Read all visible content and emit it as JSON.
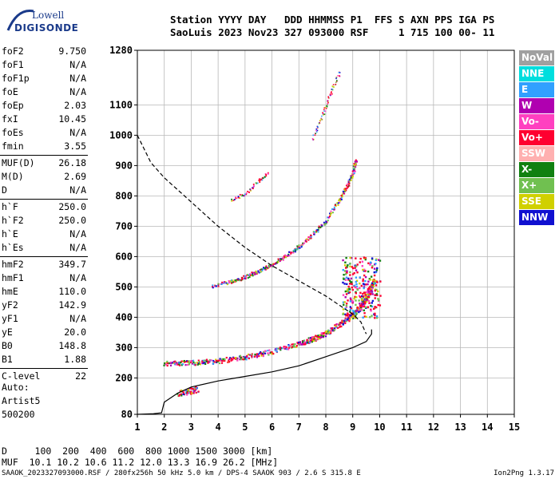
{
  "logo": {
    "brand": "Lowell",
    "product": "DIGISONDE"
  },
  "header": {
    "line1": "Station YYYY DAY   DDD HHMMSS P1  FFS S AXN PPS IGA PS",
    "line2": "SaoLuis 2023 Nov23 327 093000 RSF     1 715 100 00- 11"
  },
  "params": {
    "group1": [
      {
        "k": "foF2",
        "v": "9.750"
      },
      {
        "k": "foF1",
        "v": "N/A"
      },
      {
        "k": "foF1p",
        "v": "N/A"
      },
      {
        "k": "foE",
        "v": "N/A"
      },
      {
        "k": "foEp",
        "v": "2.03"
      },
      {
        "k": "fxI",
        "v": "10.45"
      },
      {
        "k": "foEs",
        "v": "N/A"
      },
      {
        "k": "fmin",
        "v": "3.55"
      }
    ],
    "group2": [
      {
        "k": "MUF(D)",
        "v": "26.18"
      },
      {
        "k": "M(D)",
        "v": "2.69"
      },
      {
        "k": "D",
        "v": "N/A"
      }
    ],
    "group3": [
      {
        "k": "h`F",
        "v": "250.0"
      },
      {
        "k": "h`F2",
        "v": "250.0"
      },
      {
        "k": "h`E",
        "v": "N/A"
      },
      {
        "k": "h`Es",
        "v": "N/A"
      }
    ],
    "group4": [
      {
        "k": "hmF2",
        "v": "349.7"
      },
      {
        "k": "hmF1",
        "v": "N/A"
      },
      {
        "k": "hmE",
        "v": "110.0"
      },
      {
        "k": "yF2",
        "v": "142.9"
      },
      {
        "k": "yF1",
        "v": "N/A"
      },
      {
        "k": "yE",
        "v": "20.0"
      },
      {
        "k": "B0",
        "v": "148.8"
      },
      {
        "k": "B1",
        "v": "1.88"
      }
    ],
    "group5": [
      {
        "k": "C-level",
        "v": "22"
      }
    ]
  },
  "auto": {
    "line1": "Auto:",
    "line2": "Artist5",
    "line3": "500200"
  },
  "legend": [
    {
      "label": "NoVal",
      "color": "#a0a0a0"
    },
    {
      "label": "NNE",
      "color": "#00dede"
    },
    {
      "label": "E",
      "color": "#30a0ff"
    },
    {
      "label": "W",
      "color": "#b000b0"
    },
    {
      "label": "Vo-",
      "color": "#ff40c0"
    },
    {
      "label": "Vo+",
      "color": "#ff0030"
    },
    {
      "label": "SSW",
      "color": "#ffb0b0"
    },
    {
      "label": "X-",
      "color": "#108010"
    },
    {
      "label": "X+",
      "color": "#70c050"
    },
    {
      "label": "SSE",
      "color": "#d0d000"
    },
    {
      "label": "NNW",
      "color": "#1010d0"
    }
  ],
  "muf_table": {
    "d_line": "D     100  200  400  600  800 1000 1500 3000 [km]",
    "muf_line": "MUF  10.1 10.2 10.6 11.2 12.0 13.3 16.9 26.2 [MHz]"
  },
  "footer": {
    "left": "SAAOK_2023327093000.RSF / 280fx256h 50 kHz 5.0 km / DPS-4 SAAOK 903 / 2.6 S 315.8 E",
    "right": "Ion2Png 1.3.17"
  },
  "chart_data": {
    "type": "scatter",
    "xlim": [
      1,
      15
    ],
    "ylim": [
      80,
      1280
    ],
    "x_ticks": [
      1,
      2,
      3,
      4,
      5,
      6,
      7,
      8,
      9,
      10,
      11,
      12,
      13,
      14,
      15
    ],
    "y_ticks": [
      80,
      200,
      300,
      400,
      500,
      600,
      700,
      800,
      900,
      1000,
      1100,
      1280
    ],
    "grid": true,
    "traces": {
      "f_layer": [
        [
          2.0,
          250
        ],
        [
          3.0,
          252
        ],
        [
          4.0,
          258
        ],
        [
          5.0,
          270
        ],
        [
          6.0,
          290
        ],
        [
          7.0,
          315
        ],
        [
          7.5,
          330
        ],
        [
          8.0,
          350
        ],
        [
          8.5,
          378
        ],
        [
          9.0,
          410
        ],
        [
          9.3,
          440
        ],
        [
          9.6,
          480
        ],
        [
          9.75,
          520
        ]
      ],
      "second_hop": [
        [
          3.8,
          505
        ],
        [
          4.5,
          520
        ],
        [
          5.0,
          535
        ],
        [
          5.5,
          555
        ],
        [
          6.0,
          575
        ],
        [
          6.5,
          605
        ],
        [
          7.0,
          635
        ],
        [
          7.5,
          675
        ],
        [
          8.0,
          720
        ],
        [
          8.5,
          790
        ],
        [
          8.8,
          840
        ],
        [
          9.0,
          880
        ],
        [
          9.1,
          920
        ]
      ],
      "third_hop_lower": [
        [
          4.5,
          788
        ],
        [
          5.0,
          810
        ],
        [
          5.5,
          850
        ],
        [
          5.8,
          875
        ]
      ],
      "third_hop_upper": [
        [
          7.5,
          990
        ],
        [
          7.8,
          1050
        ],
        [
          8.0,
          1100
        ],
        [
          8.2,
          1150
        ],
        [
          8.5,
          1210
        ]
      ],
      "es_blob": [
        [
          2.5,
          150
        ],
        [
          2.8,
          155
        ],
        [
          3.0,
          160
        ],
        [
          3.2,
          165
        ]
      ]
    },
    "profile_curve": [
      [
        1.0,
        80
      ],
      [
        1.6,
        82
      ],
      [
        1.9,
        85
      ],
      [
        2.0,
        120
      ],
      [
        2.5,
        150
      ],
      [
        3.0,
        170
      ],
      [
        4.0,
        190
      ],
      [
        5.0,
        205
      ],
      [
        6.0,
        220
      ],
      [
        7.0,
        240
      ],
      [
        8.0,
        270
      ],
      [
        8.5,
        285
      ],
      [
        9.0,
        300
      ],
      [
        9.5,
        320
      ],
      [
        9.7,
        345
      ],
      [
        9.7,
        360
      ]
    ],
    "muf_curve": [
      [
        1.0,
        1000
      ],
      [
        1.5,
        910
      ],
      [
        2.0,
        860
      ],
      [
        3.0,
        780
      ],
      [
        4.0,
        700
      ],
      [
        5.0,
        630
      ],
      [
        6.0,
        570
      ],
      [
        7.0,
        520
      ],
      [
        8.0,
        470
      ],
      [
        9.0,
        410
      ],
      [
        9.3,
        385
      ],
      [
        9.5,
        345
      ]
    ]
  }
}
